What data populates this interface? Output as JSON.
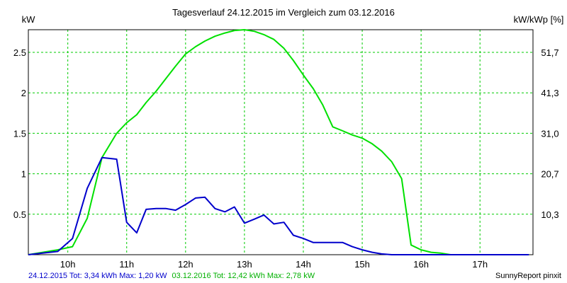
{
  "chart_data": {
    "type": "line",
    "title": "Tagesverlauf 24.12.2015 im Vergleich zum 03.12.2016",
    "ylabel_left": "kW",
    "ylabel_right": "kW/kWp [%]",
    "ylim": [
      0,
      2.78
    ],
    "xlim": [
      9.33,
      17.9
    ],
    "left_ticks": [
      "0.5",
      "1",
      "1.5",
      "2",
      "2.5"
    ],
    "left_tick_values": [
      0.5,
      1,
      1.5,
      2,
      2.5
    ],
    "right_ticks": [
      "10,3",
      "20,7",
      "31,0",
      "41,3",
      "51,7"
    ],
    "x_tick_labels": [
      "10h",
      "11h",
      "12h",
      "13h",
      "14h",
      "15h",
      "16h",
      "17h"
    ],
    "x_tick_values": [
      10,
      11,
      12,
      13,
      14,
      15,
      16,
      17
    ],
    "grid": true,
    "series": [
      {
        "color": "#00e000",
        "x": [
          9.33,
          9.83,
          10.08,
          10.33,
          10.58,
          10.83,
          11.0,
          11.17,
          11.33,
          11.5,
          11.67,
          11.83,
          12.0,
          12.17,
          12.33,
          12.5,
          12.67,
          12.83,
          13.0,
          13.17,
          13.33,
          13.5,
          13.67,
          13.83,
          14.0,
          14.17,
          14.33,
          14.5,
          14.67,
          14.83,
          15.0,
          15.17,
          15.33,
          15.5,
          15.67,
          15.83,
          16.0,
          16.17,
          16.33,
          16.5,
          16.67,
          16.83,
          17.0,
          17.17,
          17.33,
          17.5,
          17.67,
          17.83
        ],
        "values": [
          0.0,
          0.06,
          0.1,
          0.45,
          1.2,
          1.5,
          1.63,
          1.73,
          1.88,
          2.02,
          2.18,
          2.33,
          2.48,
          2.57,
          2.64,
          2.7,
          2.74,
          2.77,
          2.78,
          2.76,
          2.72,
          2.66,
          2.55,
          2.4,
          2.22,
          2.05,
          1.85,
          1.58,
          1.53,
          1.48,
          1.44,
          1.37,
          1.28,
          1.15,
          0.94,
          0.12,
          0.06,
          0.03,
          0.02,
          0.0,
          0.0,
          0.0,
          0.0,
          0.0,
          0.0,
          0.0,
          0.0,
          0.0
        ]
      },
      {
        "color": "#0000cc",
        "x": [
          9.33,
          9.83,
          10.08,
          10.33,
          10.58,
          10.83,
          11.0,
          11.17,
          11.33,
          11.5,
          11.67,
          11.83,
          12.0,
          12.17,
          12.33,
          12.5,
          12.67,
          12.83,
          13.0,
          13.17,
          13.33,
          13.5,
          13.67,
          13.83,
          14.0,
          14.17,
          14.33,
          14.5,
          14.67,
          14.83,
          15.0,
          15.17,
          15.33,
          15.5,
          15.67,
          15.83,
          16.0,
          16.17,
          16.33,
          16.5,
          16.67,
          16.83,
          17.0,
          17.17,
          17.33,
          17.5,
          17.67,
          17.83
        ],
        "values": [
          0.0,
          0.04,
          0.2,
          0.82,
          1.2,
          1.18,
          0.4,
          0.27,
          0.56,
          0.57,
          0.57,
          0.55,
          0.62,
          0.7,
          0.71,
          0.57,
          0.53,
          0.59,
          0.39,
          0.44,
          0.49,
          0.38,
          0.4,
          0.24,
          0.2,
          0.15,
          0.15,
          0.15,
          0.15,
          0.1,
          0.06,
          0.03,
          0.01,
          0.0,
          0.0,
          0.0,
          0.0,
          0.0,
          0.0,
          0.0,
          0.0,
          0.0,
          0.0,
          0.0,
          0.0,
          0.0,
          0.0,
          0.0
        ]
      }
    ]
  },
  "footer": {
    "blue_text": "24.12.2015 Tot: 3,34 kWh Max: 1,20 kW",
    "green_text": "03.12.2016 Tot: 12,42 kWh Max: 2,78 kW",
    "brand": "SunnyReport pinxit"
  },
  "colors": {
    "grid": "#00cc00",
    "axis": "#000000",
    "blue": "#0000cc",
    "green": "#00e000"
  }
}
